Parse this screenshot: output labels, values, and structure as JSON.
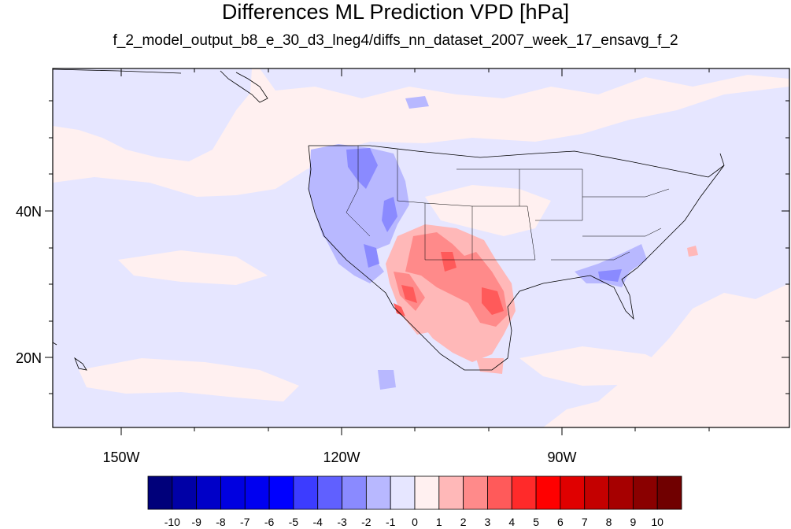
{
  "title": "Differences ML Prediction VPD [hPa]",
  "subtitle": "f_2_model_output_b8_e_30_d3_lneg4/diffs_nn_dataset_2007_week_17_ensavg_f_2",
  "map": {
    "background_color": "#fff0f0",
    "lat_labels": [
      "40N",
      "20N"
    ],
    "lon_labels": [
      "150W",
      "120W",
      "90W"
    ]
  },
  "colorbar": {
    "labels": [
      "-10",
      "-9",
      "-8",
      "-7",
      "-6",
      "-5",
      "-4",
      "-3",
      "-2",
      "-1",
      "0",
      "1",
      "2",
      "3",
      "4",
      "5",
      "6",
      "7",
      "8",
      "9",
      "10"
    ],
    "colors": [
      "#00007a",
      "#0000a6",
      "#0000c8",
      "#0000e0",
      "#0000f0",
      "#0000ff",
      "#3c3cff",
      "#6060ff",
      "#8a8aff",
      "#b8b8ff",
      "#e6e6ff",
      "#fff0f0",
      "#ffb8b8",
      "#ff8a8a",
      "#ff5a5a",
      "#ff2a2a",
      "#ff0000",
      "#e00000",
      "#c40000",
      "#a60000",
      "#8a0000",
      "#700000"
    ]
  }
}
